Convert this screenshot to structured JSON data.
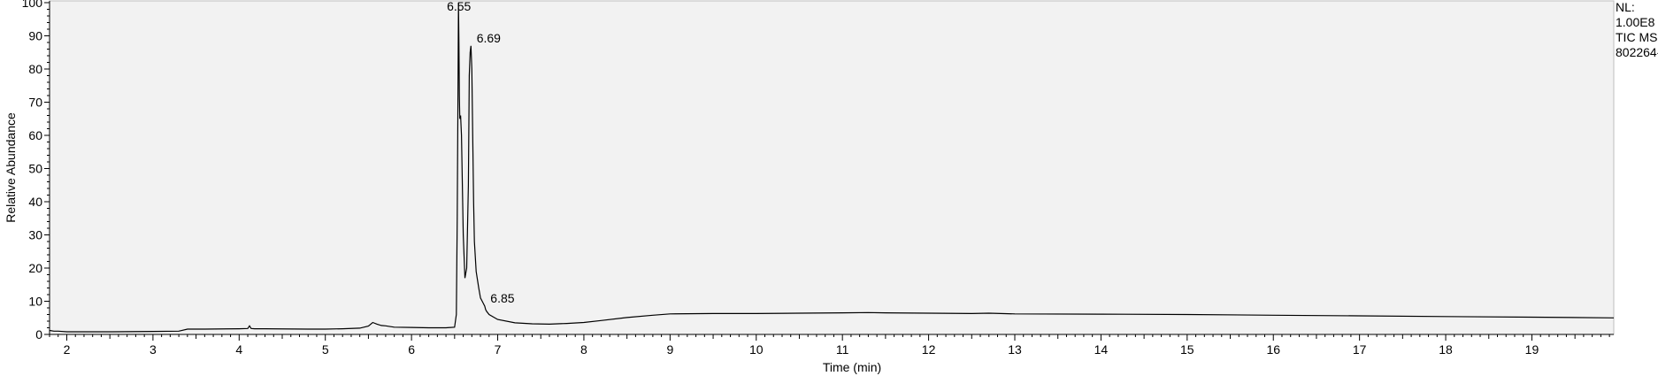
{
  "chart_data": {
    "type": "line",
    "xlabel": "Time (min)",
    "ylabel": "Relative Abundance",
    "xlim": [
      1.8,
      19.95
    ],
    "ylim": [
      0,
      100
    ],
    "x_ticks": [
      2,
      3,
      4,
      5,
      6,
      7,
      8,
      9,
      10,
      11,
      12,
      13,
      14,
      15,
      16,
      17,
      18,
      19
    ],
    "y_ticks": [
      0,
      10,
      20,
      30,
      40,
      50,
      60,
      70,
      80,
      90,
      100
    ],
    "grid": false,
    "background": "#f2f2f2",
    "line_color": "#000000",
    "series": [
      {
        "x": [
          1.8,
          1.85,
          1.9,
          2.0,
          2.5,
          3.0,
          3.3,
          3.4,
          3.6,
          4.0,
          4.1,
          4.12,
          4.14,
          4.18,
          4.3,
          4.8,
          5.0,
          5.2,
          5.4,
          5.5,
          5.55,
          5.6,
          5.65,
          5.7,
          5.8,
          6.0,
          6.2,
          6.4,
          6.5,
          6.52,
          6.53,
          6.54,
          6.545,
          6.55,
          6.555,
          6.56,
          6.57,
          6.58,
          6.59,
          6.6,
          6.62,
          6.64,
          6.66,
          6.67,
          6.68,
          6.69,
          6.7,
          6.71,
          6.72,
          6.73,
          6.75,
          6.78,
          6.8,
          6.83,
          6.85,
          6.86,
          6.87,
          6.9,
          7.0,
          7.2,
          7.4,
          7.6,
          7.8,
          8.0,
          8.2,
          8.5,
          8.8,
          9.0,
          9.5,
          10.0,
          10.5,
          11.0,
          11.3,
          11.5,
          12.0,
          12.5,
          12.7,
          13.0,
          14.0,
          15.0,
          16.0,
          17.0,
          18.0,
          19.0,
          19.95
        ],
        "y": [
          1.2,
          1.0,
          1.0,
          0.8,
          0.8,
          0.9,
          1.0,
          1.6,
          1.6,
          1.7,
          1.8,
          2.6,
          1.8,
          1.7,
          1.7,
          1.6,
          1.6,
          1.7,
          1.9,
          2.5,
          3.6,
          3.1,
          2.7,
          2.6,
          2.2,
          2.1,
          2.0,
          2.0,
          2.2,
          6,
          35,
          75,
          100,
          88,
          72,
          65,
          66,
          60,
          45,
          30,
          17,
          20,
          45,
          78,
          85,
          87,
          80,
          60,
          40,
          28,
          19,
          14,
          11,
          9.5,
          8.5,
          7.5,
          7,
          6,
          4.5,
          3.5,
          3.2,
          3.1,
          3.3,
          3.6,
          4.2,
          5.1,
          5.8,
          6.2,
          6.3,
          6.3,
          6.4,
          6.5,
          6.6,
          6.5,
          6.4,
          6.3,
          6.4,
          6.2,
          6.1,
          6.0,
          5.8,
          5.6,
          5.4,
          5.2,
          5.0
        ]
      }
    ],
    "peak_labels": [
      {
        "text": "6.55",
        "x": 6.55,
        "y": 100
      },
      {
        "text": "6.69",
        "x": 6.69,
        "y": 87
      },
      {
        "text": "6.85",
        "x": 6.85,
        "y": 8.5
      }
    ]
  },
  "info": {
    "line1": "NL:",
    "line2": "1.00E8",
    "line3": "TIC  MS",
    "line4": "802264-"
  }
}
